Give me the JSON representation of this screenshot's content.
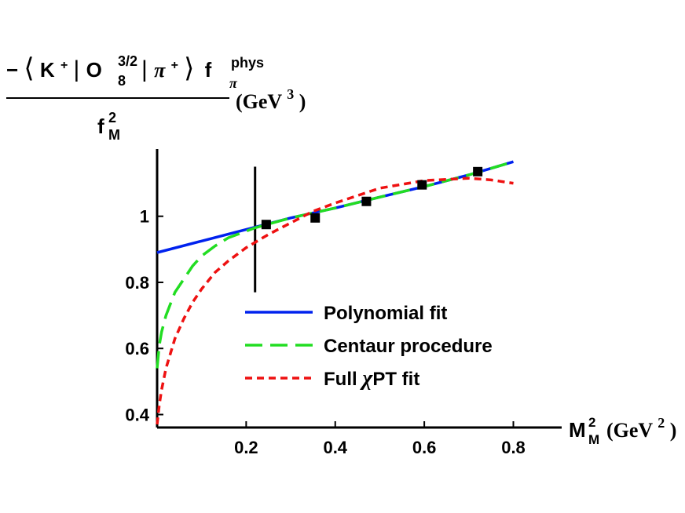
{
  "chart_data": {
    "type": "line",
    "ylabel": {
      "minus": "−",
      "K": "K",
      "plus": "+",
      "O": "O",
      "O_sub": "8",
      "O_sup": "3/2",
      "pi": "π",
      "f": "f",
      "f_sub": "π",
      "f_sup": "phys",
      "denom_f": "f",
      "denom_sub": "M",
      "denom_sup": "2",
      "unit_open": "(GeV",
      "unit_sup": "3",
      "unit_close": ")"
    },
    "xlabel": {
      "M": "M",
      "M_sub": "M",
      "M_sup": "2",
      "unit_open": "(GeV",
      "unit_sup": "2",
      "unit_close": ")"
    },
    "xlim": [
      0,
      0.82
    ],
    "ylim": [
      0.36,
      1.2
    ],
    "x_ticks": [
      {
        "value": 0.2,
        "label": "0.2"
      },
      {
        "value": 0.4,
        "label": "0.4"
      },
      {
        "value": 0.6,
        "label": "0.6"
      },
      {
        "value": 0.8,
        "label": "0.8"
      }
    ],
    "y_ticks": [
      {
        "value": 0.4,
        "label": "0.4"
      },
      {
        "value": 0.6,
        "label": "0.6"
      },
      {
        "value": 0.8,
        "label": "0.8"
      },
      {
        "value": 1.0,
        "label": "1"
      }
    ],
    "vertical_marker_x": 0.22,
    "vertical_marker_yrange": [
      0.77,
      1.15
    ],
    "data_points": {
      "x": [
        0.245,
        0.355,
        0.47,
        0.595,
        0.72
      ],
      "y": [
        0.975,
        0.995,
        1.045,
        1.095,
        1.135
      ]
    },
    "series": [
      {
        "name": "Polynomial fit",
        "style": "solid",
        "color": "#0022ee",
        "x": [
          0.0,
          0.1,
          0.2,
          0.3,
          0.4,
          0.5,
          0.6,
          0.7,
          0.8
        ],
        "y": [
          0.89,
          0.925,
          0.96,
          0.995,
          1.025,
          1.058,
          1.09,
          1.125,
          1.165
        ]
      },
      {
        "name": "Centaur procedure",
        "style": "dash-long",
        "color": "#22dd22",
        "x": [
          0.0,
          0.005,
          0.01,
          0.02,
          0.04,
          0.06,
          0.08,
          0.1,
          0.13,
          0.16,
          0.19,
          0.22,
          0.3,
          0.4,
          0.5,
          0.6,
          0.7,
          0.8
        ],
        "y": [
          0.54,
          0.61,
          0.65,
          0.7,
          0.77,
          0.81,
          0.85,
          0.88,
          0.91,
          0.935,
          0.95,
          0.965,
          0.995,
          1.025,
          1.058,
          1.09,
          1.125,
          1.165
        ]
      },
      {
        "name": "Full χPT fit",
        "style": "dash-short",
        "color": "#ee1111",
        "x": [
          0.0,
          0.005,
          0.01,
          0.02,
          0.04,
          0.06,
          0.08,
          0.1,
          0.13,
          0.16,
          0.2,
          0.25,
          0.3,
          0.35,
          0.4,
          0.5,
          0.6,
          0.7,
          0.75,
          0.8
        ],
        "y": [
          0.37,
          0.43,
          0.475,
          0.54,
          0.63,
          0.69,
          0.74,
          0.78,
          0.83,
          0.865,
          0.905,
          0.945,
          0.98,
          1.015,
          1.04,
          1.085,
          1.108,
          1.115,
          1.11,
          1.1
        ]
      }
    ],
    "legend": {
      "placement": "lower-right",
      "entries": [
        {
          "label": "Polynomial fit"
        },
        {
          "label": "Centaur procedure"
        },
        {
          "label_pre": "Full ",
          "label_chi": "χ",
          "label_post": "PT fit"
        }
      ]
    },
    "grid": false
  }
}
